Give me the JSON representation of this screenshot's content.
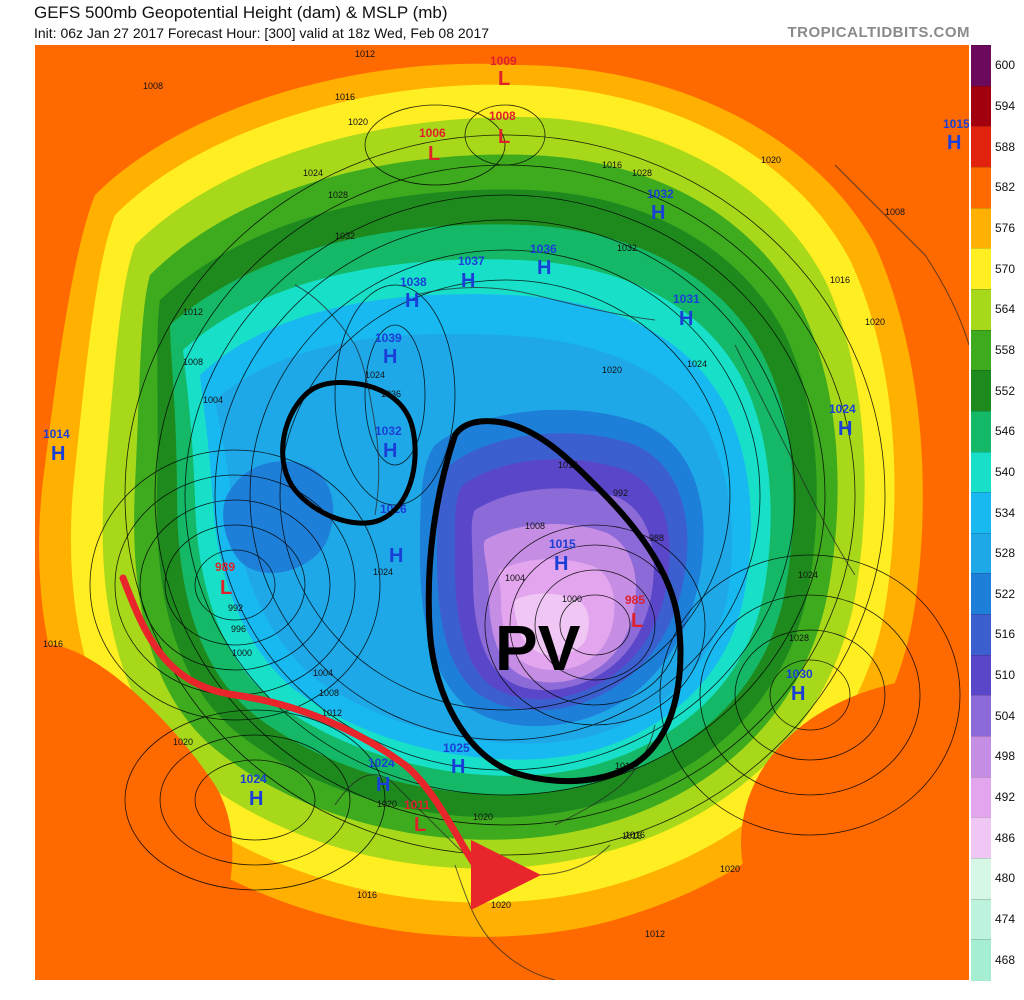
{
  "header": {
    "title": "GEFS 500mb Geopotential Height (dam) & MSLP (mb)",
    "subtitle": "Init: 06z Jan 27 2017   Forecast Hour: [300]   valid at 18z Wed, Feb 08 2017",
    "brand": "TROPICALTIDBITS.COM"
  },
  "colorbar": {
    "labels": [
      "600",
      "594",
      "588",
      "582",
      "576",
      "570",
      "564",
      "558",
      "552",
      "546",
      "540",
      "534",
      "528",
      "522",
      "516",
      "510",
      "504",
      "498",
      "492",
      "486",
      "480",
      "474",
      "468"
    ],
    "colors": [
      "#6b0a5c",
      "#a3000f",
      "#e0220f",
      "#ff6a00",
      "#ffb000",
      "#ffee22",
      "#a8d81a",
      "#3eaa1e",
      "#1e8a1e",
      "#14b866",
      "#18e0c8",
      "#18b8f0",
      "#1ea8e8",
      "#1e7fd8",
      "#3c5fd0",
      "#5a46c8",
      "#8c6ad8",
      "#c58ee4",
      "#e3a6ee",
      "#f0c6f4",
      "#d6f6e6",
      "#bdf2dc",
      "#a6eed2"
    ]
  },
  "systems": [
    {
      "type": "L",
      "value": "1009",
      "color": "#e0202a"
    },
    {
      "type": "L",
      "value": "1006",
      "color": "#e0202a"
    },
    {
      "type": "L",
      "value": "1008",
      "color": "#e0202a"
    },
    {
      "type": "H",
      "value": "1015",
      "color": "#1a3fd6"
    },
    {
      "type": "H",
      "value": "1032",
      "color": "#1a3fd6"
    },
    {
      "type": "H",
      "value": "1038",
      "color": "#1a3fd6"
    },
    {
      "type": "H",
      "value": "1037",
      "color": "#1a3fd6"
    },
    {
      "type": "H",
      "value": "1036",
      "color": "#1a3fd6"
    },
    {
      "type": "H",
      "value": "1031",
      "color": "#1a3fd6"
    },
    {
      "type": "H",
      "value": "1039",
      "color": "#1a3fd6"
    },
    {
      "type": "H",
      "value": "1014",
      "color": "#1a3fd6"
    },
    {
      "type": "H",
      "value": "1032",
      "color": "#1a3fd6"
    },
    {
      "type": "H",
      "value": "1024",
      "color": "#1a3fd6"
    },
    {
      "type": "H",
      "value": "1026",
      "color": "#1a3fd6"
    },
    {
      "type": "H",
      "value": "1015",
      "color": "#1a3fd6"
    },
    {
      "type": "L",
      "value": "989",
      "color": "#e0202a"
    },
    {
      "type": "L",
      "value": "985",
      "color": "#e0202a"
    },
    {
      "type": "H",
      "value": "1030",
      "color": "#1a3fd6"
    },
    {
      "type": "H",
      "value": "1024",
      "color": "#1a3fd6"
    },
    {
      "type": "H",
      "value": "1025",
      "color": "#1a3fd6"
    },
    {
      "type": "H",
      "value": "1024",
      "color": "#1a3fd6"
    },
    {
      "type": "L",
      "value": "1011",
      "color": "#e0202a"
    }
  ],
  "isobar_labels": [
    "1012",
    "1008",
    "1016",
    "1020",
    "1024",
    "1028",
    "1032",
    "1036",
    "1024",
    "1012",
    "1008",
    "1004",
    "992",
    "996",
    "1000",
    "1004",
    "1008",
    "1012",
    "1016",
    "1020",
    "1024",
    "1020",
    "1016",
    "992",
    "988",
    "1004",
    "1008",
    "1000",
    "1012",
    "1016",
    "1020",
    "1024",
    "1028",
    "1016",
    "1008",
    "1020",
    "1016",
    "1028",
    "1032",
    "1020",
    "1024",
    "1016",
    "1020",
    "1020",
    "1016",
    "1020",
    "1012"
  ],
  "annotation": {
    "text": "PV",
    "color": "#000000",
    "arrow_color": "#e8252a"
  }
}
